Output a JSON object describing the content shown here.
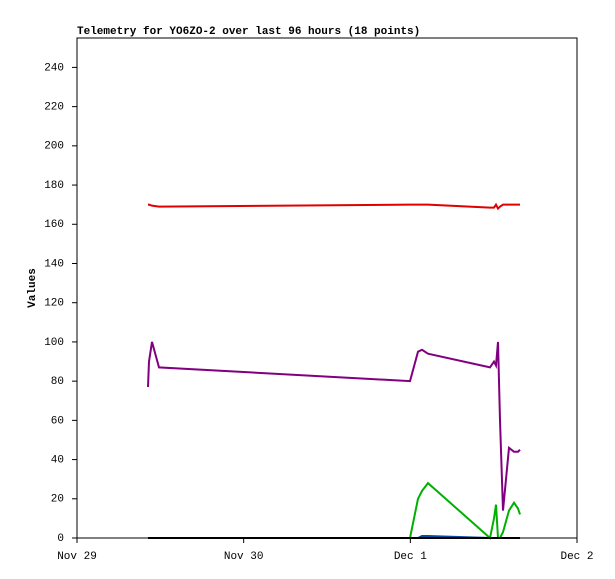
{
  "chart_data": {
    "type": "line",
    "title": "Telemetry for YO6ZO-2 over last 96 hours (18 points)",
    "y_label": "Values",
    "x": [
      0.426,
      0.432,
      0.45,
      0.492,
      1.998,
      2.046,
      2.07,
      2.106,
      2.478,
      2.502,
      2.514,
      2.526,
      2.538,
      2.556,
      2.592,
      2.622,
      2.646,
      2.658
    ],
    "xlim": [
      0,
      3
    ],
    "xticks": [
      {
        "value": 0,
        "label": "Nov 29"
      },
      {
        "value": 1,
        "label": "Nov 30"
      },
      {
        "value": 2,
        "label": "Dec 1"
      },
      {
        "value": 3,
        "label": "Dec 2"
      }
    ],
    "ylim": [
      0,
      255
    ],
    "yticks": [
      0,
      20,
      40,
      60,
      80,
      100,
      120,
      140,
      160,
      180,
      200,
      220,
      240
    ],
    "grid": false,
    "series": [
      {
        "color": "#e00000",
        "values": [
          170,
          170,
          169.5,
          169,
          170,
          170,
          170,
          170,
          168.5,
          168.5,
          170,
          168,
          169,
          170,
          170,
          170,
          170,
          170
        ]
      },
      {
        "color": "#800080",
        "values": [
          77,
          90,
          100,
          87,
          80,
          95,
          96,
          94,
          87,
          90,
          88,
          100,
          60,
          14,
          46,
          44,
          44,
          45
        ]
      },
      {
        "color": "#00b000",
        "values": [
          0,
          0,
          0,
          0,
          0,
          20,
          24,
          28,
          0,
          10,
          17,
          0,
          0,
          3,
          14,
          18,
          15,
          12
        ]
      },
      {
        "color": "#0050a0",
        "values": [
          0,
          0,
          0,
          0,
          0,
          0,
          1,
          1,
          0,
          0,
          0,
          0,
          0,
          0,
          0,
          0,
          0,
          0
        ]
      },
      {
        "color": "#000000",
        "values": [
          0,
          0,
          0,
          0,
          0,
          0,
          0,
          0,
          0,
          0,
          0,
          0,
          0,
          0,
          0,
          0,
          0,
          0
        ]
      }
    ]
  }
}
